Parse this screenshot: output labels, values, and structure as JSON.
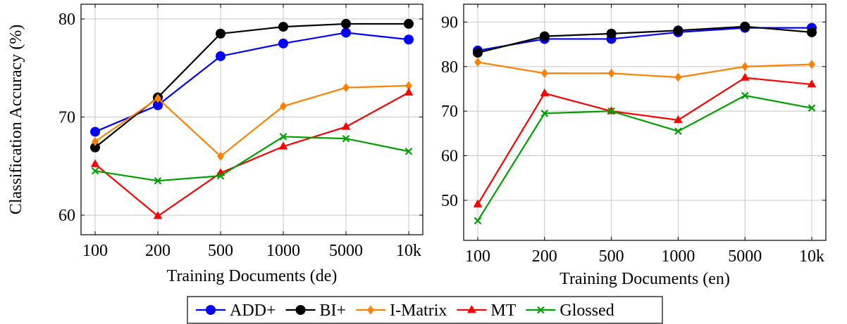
{
  "chart_data": {
    "ylabel": "Classification Accuracy (%)",
    "legend_placement": "bottom-center",
    "grid": true,
    "series_styles": [
      {
        "name": "ADD+",
        "color": "#0000ff",
        "marker": "circle"
      },
      {
        "name": "BI+",
        "color": "#000000",
        "marker": "circle"
      },
      {
        "name": "I-Matrix",
        "color": "#ff8000",
        "marker": "diamond"
      },
      {
        "name": "MT",
        "color": "#ff0000",
        "marker": "triangle"
      },
      {
        "name": "Glossed",
        "color": "#00a000",
        "marker": "x"
      }
    ],
    "charts": [
      {
        "type": "line",
        "xlabel": "Training Documents (de)",
        "categories": [
          "100",
          "200",
          "500",
          "1000",
          "5000",
          "10k"
        ],
        "ylim": [
          58,
          81.5
        ],
        "yticks": [
          60,
          70,
          80
        ],
        "series": [
          {
            "name": "ADD+",
            "values": [
              68.5,
              71.2,
              76.2,
              77.5,
              78.6,
              77.9
            ]
          },
          {
            "name": "BI+",
            "values": [
              66.9,
              72.0,
              78.5,
              79.2,
              79.5,
              79.5
            ]
          },
          {
            "name": "I-Matrix",
            "values": [
              67.5,
              71.9,
              66.0,
              71.1,
              73.0,
              73.2
            ]
          },
          {
            "name": "MT",
            "values": [
              65.2,
              59.9,
              64.3,
              67.0,
              69.0,
              72.5
            ]
          },
          {
            "name": "Glossed",
            "values": [
              64.5,
              63.5,
              64.0,
              68.0,
              67.8,
              66.5
            ]
          }
        ]
      },
      {
        "type": "line",
        "xlabel": "Training Documents (en)",
        "categories": [
          "100",
          "200",
          "500",
          "1000",
          "5000",
          "10k"
        ],
        "ylim": [
          41,
          94
        ],
        "yticks": [
          50,
          60,
          70,
          80,
          90
        ],
        "series": [
          {
            "name": "ADD+",
            "values": [
              83.6,
              86.2,
              86.2,
              87.7,
              88.7,
              88.7
            ]
          },
          {
            "name": "BI+",
            "values": [
              83.1,
              86.8,
              87.4,
              88.1,
              89.0,
              87.7
            ]
          },
          {
            "name": "I-Matrix",
            "values": [
              81.0,
              78.5,
              78.5,
              77.6,
              80.0,
              80.5
            ]
          },
          {
            "name": "MT",
            "values": [
              49.1,
              74.0,
              70.0,
              68.0,
              77.5,
              76.0
            ]
          },
          {
            "name": "Glossed",
            "values": [
              45.4,
              69.5,
              70.0,
              65.5,
              73.5,
              70.7
            ]
          }
        ]
      }
    ]
  }
}
